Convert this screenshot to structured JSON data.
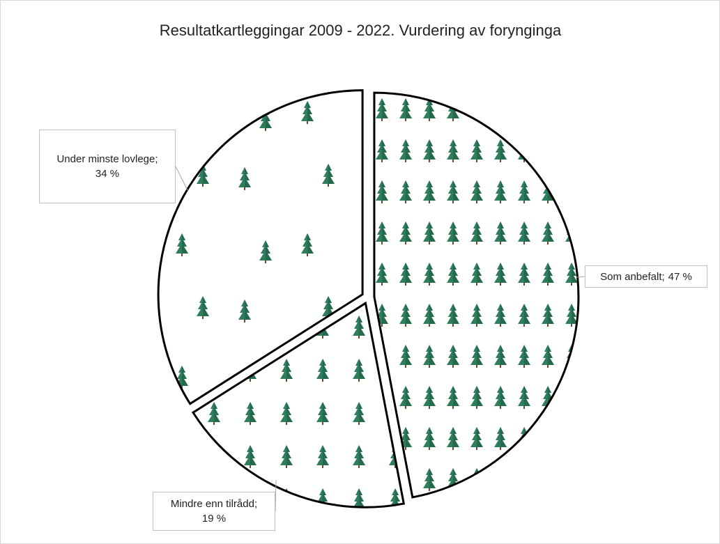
{
  "chart_data": {
    "type": "pie",
    "title": "Resultatkartleggingar 2009 - 2022. Vurdering av forynginga",
    "categories": [
      "Som anbefalt",
      "Mindre enn tilrådd",
      "Under minste lovlege"
    ],
    "values": [
      47,
      19,
      34
    ],
    "value_labels": [
      "47 %",
      "19 %",
      "34 %"
    ],
    "colors": [
      "#2e7d5c",
      "#2e7d5c",
      "#2e7d5c"
    ],
    "exploded": true
  }
}
